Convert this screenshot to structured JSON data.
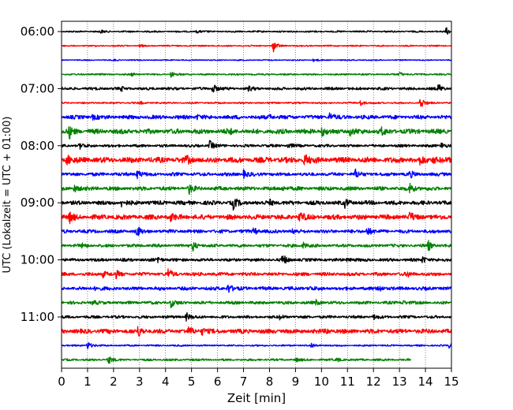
{
  "chart_data": {
    "type": "line",
    "title": "",
    "xlabel": "Zeit  [min]",
    "ylabel": "UTC (Lokalzeit = UTC + 01:00)",
    "xlim": [
      0,
      15
    ],
    "x_ticks": [
      0,
      1,
      2,
      3,
      4,
      5,
      6,
      7,
      8,
      9,
      10,
      11,
      12,
      13,
      14,
      15
    ],
    "x_tick_labels": [
      "0",
      "1",
      "2",
      "3",
      "4",
      "5",
      "6",
      "7",
      "8",
      "9",
      "10",
      "11",
      "12",
      "13",
      "14",
      "15"
    ],
    "y_tick_labels": [
      "06:00",
      "07:00",
      "08:00",
      "09:00",
      "10:00",
      "11:00"
    ],
    "y_tick_rows": [
      0,
      4,
      8,
      12,
      16,
      20
    ],
    "minutes_per_row": 15,
    "start_time": "06:00",
    "vertical_grid": "dotted",
    "row_colors": [
      "#000000",
      "#ff0000",
      "#0000ff",
      "#008000"
    ],
    "series": [
      {
        "start": "06:00",
        "end_min": 15,
        "color": "#000000",
        "noise": 0.12,
        "events": [
          {
            "t": 1.5,
            "a": 0.2
          },
          {
            "t": 5.2,
            "a": 0.18
          },
          {
            "t": 14.8,
            "a": 0.5
          }
        ]
      },
      {
        "start": "06:15",
        "end_min": 15,
        "color": "#ff0000",
        "noise": 0.1,
        "events": [
          {
            "t": 8.15,
            "a": 0.8
          },
          {
            "t": 3.0,
            "a": 0.15
          }
        ]
      },
      {
        "start": "06:30",
        "end_min": 15,
        "color": "#0000ff",
        "noise": 0.08,
        "events": [
          {
            "t": 9.7,
            "a": 0.2
          },
          {
            "t": 2.0,
            "a": 0.12
          }
        ]
      },
      {
        "start": "06:45",
        "end_min": 15,
        "color": "#008000",
        "noise": 0.12,
        "events": [
          {
            "t": 4.2,
            "a": 0.4
          },
          {
            "t": 2.7,
            "a": 0.2
          },
          {
            "t": 13.0,
            "a": 0.3
          }
        ]
      },
      {
        "start": "07:00",
        "end_min": 15,
        "color": "#000000",
        "noise": 0.2,
        "events": [
          {
            "t": 5.8,
            "a": 0.8
          },
          {
            "t": 14.5,
            "a": 0.6
          },
          {
            "t": 7.2,
            "a": 0.3
          },
          {
            "t": 2.3,
            "a": 0.25
          }
        ]
      },
      {
        "start": "07:15",
        "end_min": 15,
        "color": "#ff0000",
        "noise": 0.12,
        "events": [
          {
            "t": 13.8,
            "a": 0.9
          },
          {
            "t": 11.5,
            "a": 0.4
          },
          {
            "t": 3.0,
            "a": 0.2
          }
        ]
      },
      {
        "start": "07:30",
        "end_min": 15,
        "color": "#0000ff",
        "noise": 0.28,
        "events": [
          {
            "t": 10.3,
            "a": 0.6
          },
          {
            "t": 5.2,
            "a": 0.35
          },
          {
            "t": 8.0,
            "a": 0.3
          },
          {
            "t": 1.2,
            "a": 0.3
          }
        ]
      },
      {
        "start": "07:45",
        "end_min": 15,
        "color": "#008000",
        "noise": 0.35,
        "events": [
          {
            "t": 0.3,
            "a": 0.8
          },
          {
            "t": 10.0,
            "a": 0.6
          },
          {
            "t": 11.1,
            "a": 0.5
          },
          {
            "t": 12.3,
            "a": 0.45
          },
          {
            "t": 6.4,
            "a": 0.4
          }
        ]
      },
      {
        "start": "08:00",
        "end_min": 15,
        "color": "#000000",
        "noise": 0.2,
        "events": [
          {
            "t": 0.7,
            "a": 0.4
          },
          {
            "t": 5.7,
            "a": 0.7
          },
          {
            "t": 8.7,
            "a": 0.35
          },
          {
            "t": 14.6,
            "a": 0.5
          }
        ]
      },
      {
        "start": "08:15",
        "end_min": 15,
        "color": "#ff0000",
        "noise": 0.4,
        "events": [
          {
            "t": 0.2,
            "a": 0.7
          },
          {
            "t": 4.8,
            "a": 0.5
          },
          {
            "t": 9.35,
            "a": 0.9
          },
          {
            "t": 13.8,
            "a": 0.5
          },
          {
            "t": 14.3,
            "a": 0.45
          }
        ]
      },
      {
        "start": "08:30",
        "end_min": 15,
        "color": "#0000ff",
        "noise": 0.25,
        "events": [
          {
            "t": 2.9,
            "a": 0.6
          },
          {
            "t": 7.0,
            "a": 0.5
          },
          {
            "t": 11.3,
            "a": 0.6
          },
          {
            "t": 13.4,
            "a": 0.4
          }
        ]
      },
      {
        "start": "08:45",
        "end_min": 15,
        "color": "#008000",
        "noise": 0.28,
        "events": [
          {
            "t": 0.5,
            "a": 0.5
          },
          {
            "t": 4.9,
            "a": 0.7
          },
          {
            "t": 13.4,
            "a": 0.8
          },
          {
            "t": 8.5,
            "a": 0.3
          }
        ]
      },
      {
        "start": "09:00",
        "end_min": 15,
        "color": "#000000",
        "noise": 0.3,
        "events": [
          {
            "t": 2.3,
            "a": 0.5
          },
          {
            "t": 6.6,
            "a": 0.8
          },
          {
            "t": 10.9,
            "a": 0.5
          },
          {
            "t": 8.0,
            "a": 0.35
          }
        ]
      },
      {
        "start": "09:15",
        "end_min": 15,
        "color": "#ff0000",
        "noise": 0.35,
        "events": [
          {
            "t": 0.3,
            "a": 0.7
          },
          {
            "t": 4.2,
            "a": 0.5
          },
          {
            "t": 9.15,
            "a": 0.8
          },
          {
            "t": 13.4,
            "a": 0.6
          }
        ]
      },
      {
        "start": "09:30",
        "end_min": 15,
        "color": "#0000ff",
        "noise": 0.25,
        "events": [
          {
            "t": 2.9,
            "a": 0.7
          },
          {
            "t": 7.4,
            "a": 0.5
          },
          {
            "t": 11.75,
            "a": 0.7
          },
          {
            "t": 8.9,
            "a": 0.3
          }
        ]
      },
      {
        "start": "09:45",
        "end_min": 15,
        "color": "#008000",
        "noise": 0.22,
        "events": [
          {
            "t": 5.05,
            "a": 0.7
          },
          {
            "t": 9.3,
            "a": 0.45
          },
          {
            "t": 14.1,
            "a": 0.7
          },
          {
            "t": 0.8,
            "a": 0.3
          }
        ]
      },
      {
        "start": "10:00",
        "end_min": 15,
        "color": "#000000",
        "noise": 0.22,
        "events": [
          {
            "t": 3.7,
            "a": 0.5
          },
          {
            "t": 8.5,
            "a": 0.8
          },
          {
            "t": 13.9,
            "a": 0.5
          },
          {
            "t": 11.0,
            "a": 0.3
          }
        ]
      },
      {
        "start": "10:15",
        "end_min": 15,
        "color": "#ff0000",
        "noise": 0.25,
        "events": [
          {
            "t": 1.6,
            "a": 0.5
          },
          {
            "t": 4.1,
            "a": 0.7
          },
          {
            "t": 2.1,
            "a": 0.45
          },
          {
            "t": 13.3,
            "a": 0.3
          }
        ]
      },
      {
        "start": "10:30",
        "end_min": 15,
        "color": "#0000ff",
        "noise": 0.25,
        "events": [
          {
            "t": 6.4,
            "a": 0.7
          },
          {
            "t": 12.2,
            "a": 0.5
          },
          {
            "t": 1.3,
            "a": 0.3
          },
          {
            "t": 9.5,
            "a": 0.3
          }
        ]
      },
      {
        "start": "10:45",
        "end_min": 15,
        "color": "#008000",
        "noise": 0.22,
        "events": [
          {
            "t": 4.2,
            "a": 0.6
          },
          {
            "t": 9.8,
            "a": 0.35
          },
          {
            "t": 13.1,
            "a": 0.35
          },
          {
            "t": 1.2,
            "a": 0.25
          }
        ]
      },
      {
        "start": "11:00",
        "end_min": 15,
        "color": "#000000",
        "noise": 0.2,
        "events": [
          {
            "t": 4.8,
            "a": 0.6
          },
          {
            "t": 8.4,
            "a": 0.3
          },
          {
            "t": 12.0,
            "a": 0.3
          }
        ]
      },
      {
        "start": "11:15",
        "end_min": 15,
        "color": "#ff0000",
        "noise": 0.32,
        "events": [
          {
            "t": 2.95,
            "a": 0.7
          },
          {
            "t": 4.9,
            "a": 0.5
          },
          {
            "t": 5.4,
            "a": 0.5
          },
          {
            "t": 10.2,
            "a": 0.3
          }
        ]
      },
      {
        "start": "11:30",
        "end_min": 15,
        "color": "#0000ff",
        "noise": 0.12,
        "events": [
          {
            "t": 1.0,
            "a": 0.6
          },
          {
            "t": 9.6,
            "a": 0.35
          },
          {
            "t": 14.9,
            "a": 0.3
          }
        ]
      },
      {
        "start": "11:45",
        "end_min": 13.45,
        "color": "#008000",
        "noise": 0.15,
        "events": [
          {
            "t": 1.8,
            "a": 0.6
          },
          {
            "t": 9.0,
            "a": 0.3
          },
          {
            "t": 10.6,
            "a": 0.3
          }
        ]
      }
    ]
  }
}
